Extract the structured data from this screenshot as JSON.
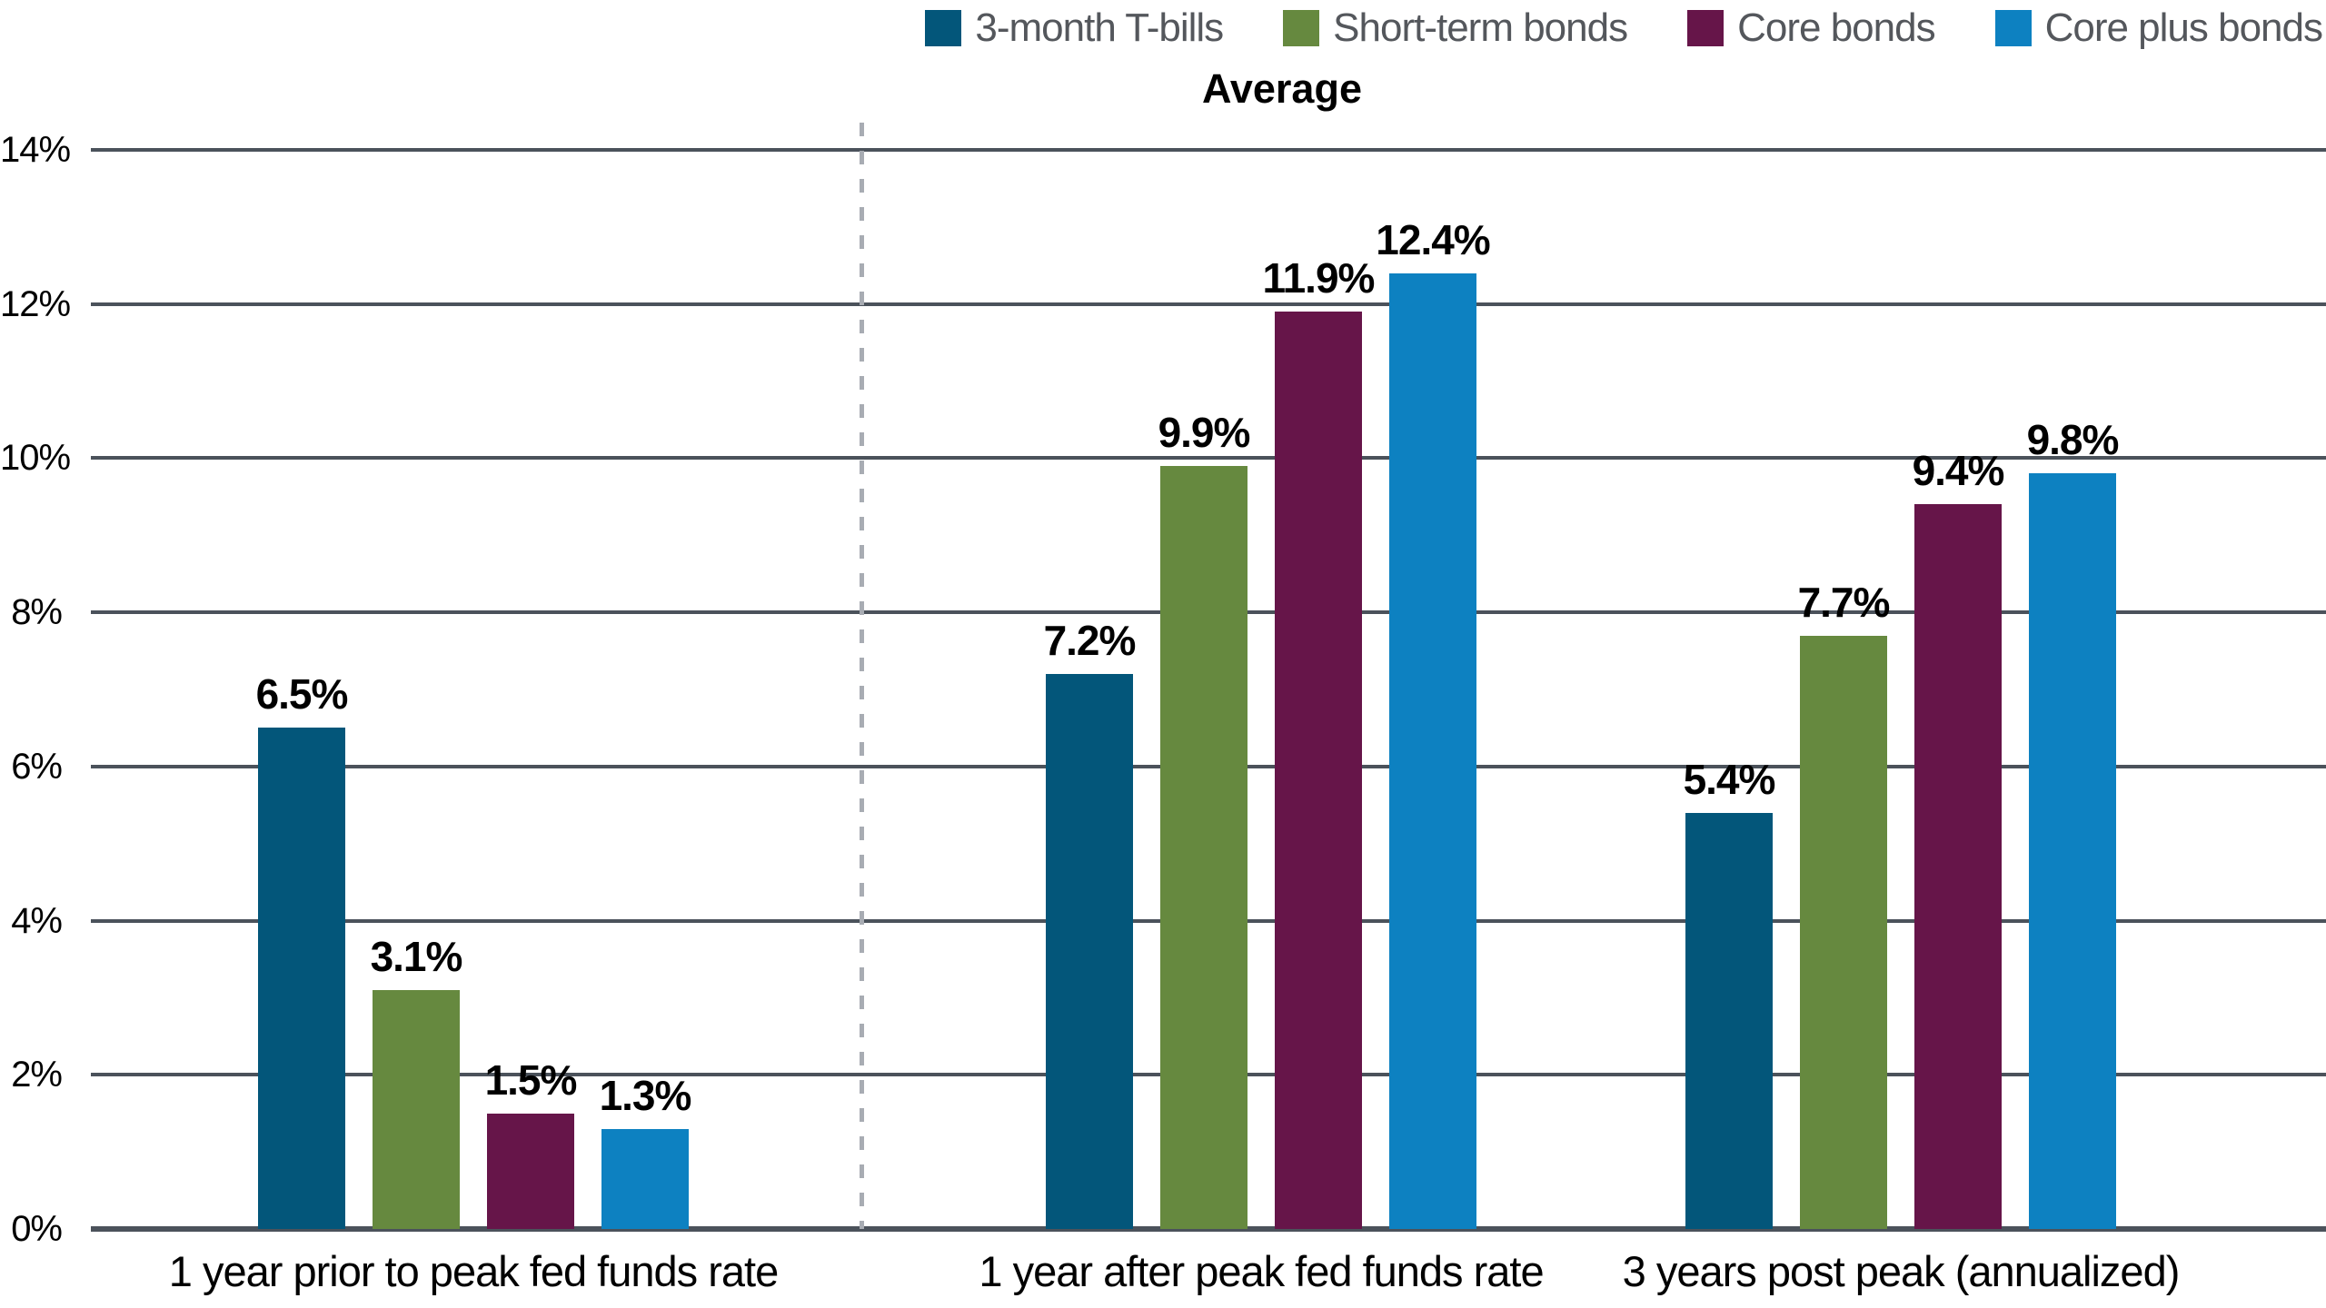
{
  "chart_data": {
    "type": "bar",
    "title": "Average",
    "categories": [
      "1 year prior to peak fed funds rate",
      "1 year after peak fed funds rate",
      "3 years post peak (annualized)"
    ],
    "series": [
      {
        "name": "3-month T-bills",
        "color": "#03567a",
        "values": [
          6.5,
          7.2,
          5.4
        ],
        "value_labels": [
          "6.5%",
          "7.2%",
          "5.4%"
        ]
      },
      {
        "name": "Short-term bonds",
        "color": "#66893f",
        "values": [
          3.1,
          9.9,
          7.7
        ],
        "value_labels": [
          "3.1%",
          "9.9%",
          "7.7%"
        ]
      },
      {
        "name": "Core bonds",
        "color": "#661549",
        "values": [
          1.5,
          11.9,
          9.4
        ],
        "value_labels": [
          "1.5%",
          "11.9%",
          "9.4%"
        ]
      },
      {
        "name": "Core plus bonds",
        "color": "#0d81c1",
        "values": [
          1.3,
          12.4,
          9.8
        ],
        "value_labels": [
          "1.3%",
          "12.4%",
          "9.8%"
        ]
      }
    ],
    "ylim": [
      0,
      14
    ],
    "yticks": [
      0,
      2,
      4,
      6,
      8,
      10,
      12,
      14
    ],
    "ytick_labels": [
      "0%",
      "2%",
      "4%",
      "6%",
      "8%",
      "10%",
      "12%",
      "14%"
    ],
    "grid": true,
    "legend_position": "top-right",
    "divider_after_category": 0,
    "colors": {
      "grid": "#4b525b",
      "axis": "#4b525b",
      "divider": "#a8acb3",
      "value_label": "#000000",
      "tick_label": "#000000",
      "legend_text": "#54575c"
    }
  }
}
